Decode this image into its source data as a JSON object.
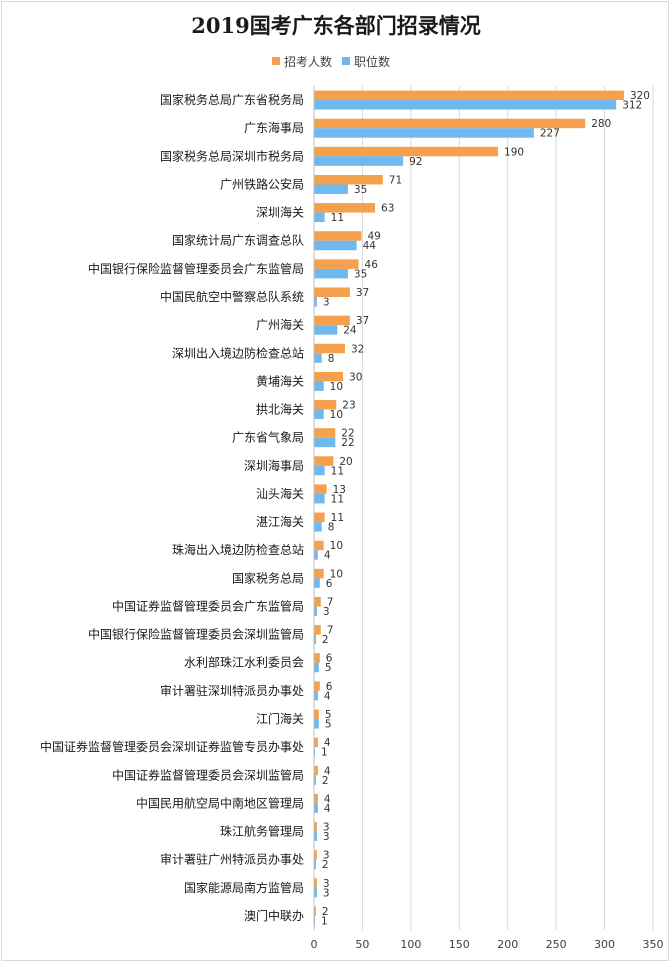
{
  "chart_data": {
    "type": "bar",
    "orientation": "horizontal",
    "title": "2019国考广东各部门招录情况",
    "xlim": [
      0,
      350
    ],
    "x_ticks": [
      0,
      50,
      100,
      150,
      200,
      250,
      300,
      350
    ],
    "grid": "vertical",
    "legend_position": "top",
    "categories": [
      "国家税务总局广东省税务局",
      "广东海事局",
      "国家税务总局深圳市税务局",
      "广州铁路公安局",
      "深圳海关",
      "国家统计局广东调查总队",
      "中国银行保险监督管理委员会广东监管局",
      "中国民航空中警察总队系统",
      "广州海关",
      "深圳出入境边防检查总站",
      "黄埔海关",
      "拱北海关",
      "广东省气象局",
      "深圳海事局",
      "汕头海关",
      "湛江海关",
      "珠海出入境边防检查总站",
      "国家税务总局",
      "中国证券监督管理委员会广东监管局",
      "中国银行保险监督管理委员会深圳监管局",
      "水利部珠江水利委员会",
      "审计署驻深圳特派员办事处",
      "江门海关",
      "中国证券监督管理委员会深圳证券监管专员办事处",
      "中国证券监督管理委员会深圳监管局",
      "中国民用航空局中南地区管理局",
      "珠江航务管理局",
      "审计署驻广州特派员办事处",
      "国家能源局南方监管局",
      "澳门中联办"
    ],
    "series": [
      {
        "name": "招考人数",
        "color": "#f5a04c",
        "values": [
          320,
          280,
          190,
          71,
          63,
          49,
          46,
          37,
          37,
          32,
          30,
          23,
          22,
          20,
          13,
          11,
          10,
          10,
          7,
          7,
          6,
          6,
          5,
          4,
          4,
          4,
          3,
          3,
          3,
          2
        ]
      },
      {
        "name": "职位数",
        "color": "#6fb9ee",
        "values": [
          312,
          227,
          92,
          35,
          11,
          44,
          35,
          3,
          24,
          8,
          10,
          10,
          22,
          11,
          11,
          8,
          4,
          6,
          3,
          2,
          5,
          4,
          5,
          1,
          2,
          4,
          3,
          2,
          3,
          1
        ]
      }
    ]
  }
}
